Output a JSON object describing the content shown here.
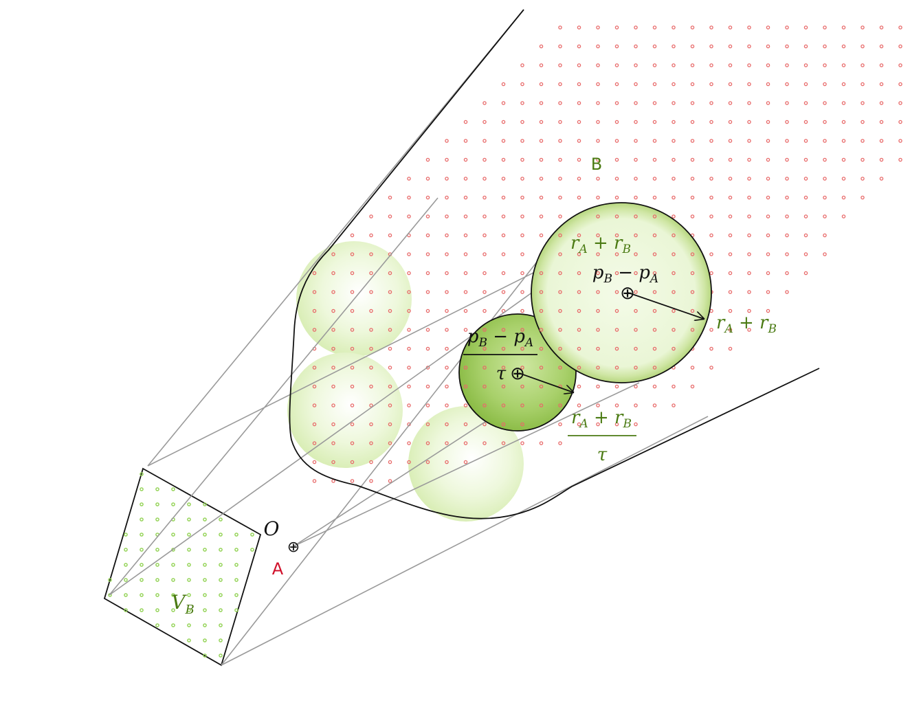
{
  "colors": {
    "dot_red": "#e86a6a",
    "dot_green": "#8fd14f",
    "green_text": "#4a7a12",
    "red_text": "#d0102a",
    "black": "#111111",
    "grey_line": "#9a9a9a",
    "light_sphere": "#d9efb2",
    "dark_sphere": "#8fbf45"
  },
  "labels": {
    "region_b": "B",
    "agent_a": "A",
    "origin": "O",
    "vel_b": "V",
    "vel_b_sub": "B"
  },
  "large_disc": {
    "fraction_num": "p",
    "num_sub1": "B",
    "minus": " − ",
    "num_p2": "p",
    "num_sub2": "A",
    "radius_text_r1": "r",
    "radius_sub1": "A",
    "plus": " + ",
    "radius_text_r2": "r",
    "radius_sub2": "B"
  },
  "small_disc": {
    "tau": "τ",
    "num_p1": "p",
    "num_sub1": "B",
    "minus": " − ",
    "num_p2": "p",
    "num_sub2": "A",
    "r1": "r",
    "sub1": "A",
    "plus": " + ",
    "r2": "r",
    "sub2": "B",
    "denom_tau": "τ"
  },
  "symbols": {
    "oplus": "⊕"
  }
}
